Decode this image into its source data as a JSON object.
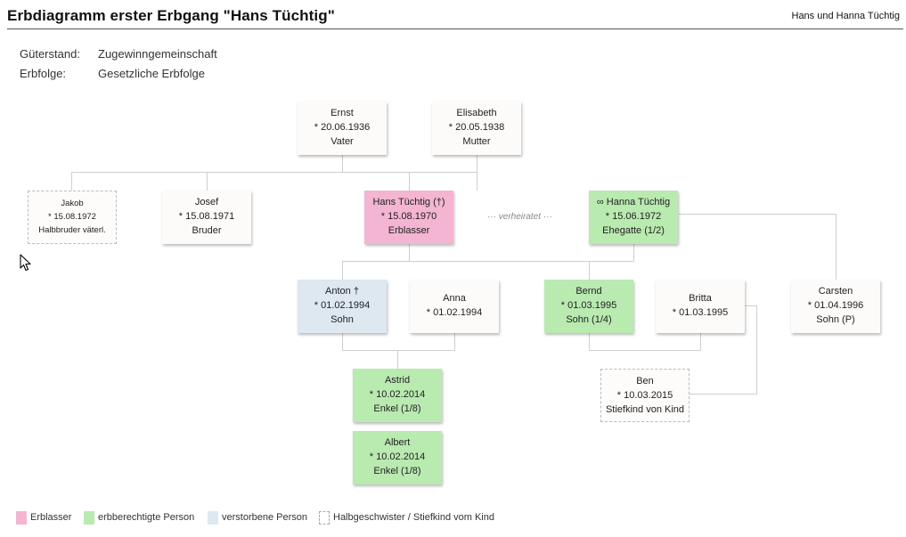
{
  "header": {
    "title": "Erbdiagramm erster Erbgang \"Hans Tüchtig\"",
    "right": "Hans und Hanna Tüchtig"
  },
  "info": {
    "gueterstand_label": "Güterstand:",
    "gueterstand_value": "Zugewinngemeinschaft",
    "erbfolge_label": "Erbfolge:",
    "erbfolge_value": "Gesetzliche Erbfolge"
  },
  "colors": {
    "erblasser": "#f3b5d2",
    "heir": "#b9eab0",
    "deceased": "#dde8f1",
    "default": "#fcfbf9",
    "line": "#cfcfcf"
  },
  "persons": {
    "ernst": {
      "name": "Ernst",
      "born": "* 20.06.1936",
      "role": "Vater"
    },
    "elisabeth": {
      "name": "Elisabeth",
      "born": "* 20.05.1938",
      "role": "Mutter"
    },
    "jakob": {
      "name": "Jakob",
      "born": "* 15.08.1972",
      "role": "Halbbruder väterl."
    },
    "josef": {
      "name": "Josef",
      "born": "* 15.08.1971",
      "role": "Bruder"
    },
    "hans": {
      "name": "Hans Tüchtig (†)",
      "born": "* 15.08.1970",
      "role": "Erblasser"
    },
    "hanna": {
      "name": "∞ Hanna Tüchtig",
      "born": "* 15.06.1972",
      "role": "Ehegatte (1/2)"
    },
    "anton": {
      "name": "Anton †",
      "born": "* 01.02.1994",
      "role": "Sohn"
    },
    "anna": {
      "name": "Anna",
      "born": "* 01.02.1994"
    },
    "bernd": {
      "name": "Bernd",
      "born": "* 01.03.1995",
      "role": "Sohn (1/4)"
    },
    "britta": {
      "name": "Britta",
      "born": "* 01.03.1995"
    },
    "carsten": {
      "name": "Carsten",
      "born": "* 01.04.1996",
      "role": "Sohn (P)"
    },
    "astrid": {
      "name": "Astrid",
      "born": "* 10.02.2014",
      "role": "Enkel (1/8)"
    },
    "albert": {
      "name": "Albert",
      "born": "* 10.02.2014",
      "role": "Enkel (1/8)"
    },
    "ben": {
      "name": "Ben",
      "born": "* 10.03.2015",
      "role": "Stiefkind von Kind"
    }
  },
  "marriage_label": "··· verheiratet ···",
  "legend": [
    {
      "label": "Erblasser",
      "color": "#f3b5d2"
    },
    {
      "label": "erbberechtigte Person",
      "color": "#b9eab0"
    },
    {
      "label": "verstorbene Person",
      "color": "#dde8f1"
    },
    {
      "label": "Halbgeschwister / Stiefkind vom Kind",
      "color": "#ffffff"
    }
  ]
}
